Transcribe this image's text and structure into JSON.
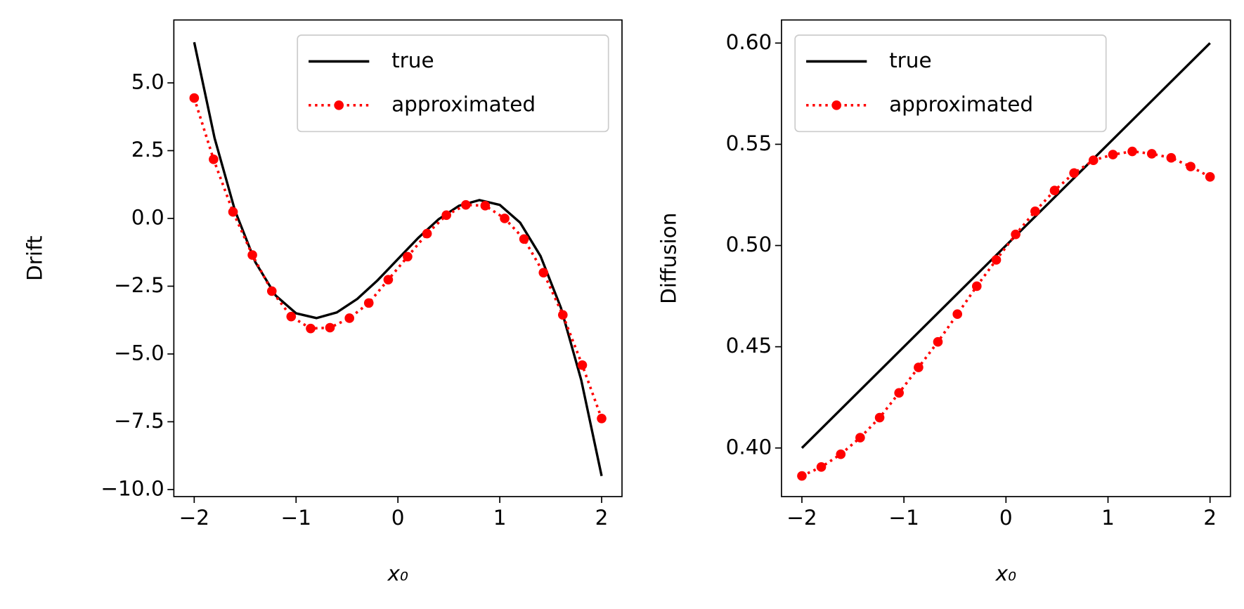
{
  "chart_data": [
    {
      "type": "line",
      "xlabel": "x₀",
      "ylabel": "Drift",
      "legend": "upper right",
      "xlim": [
        -2.2,
        2.2
      ],
      "ylim": [
        -10.26,
        7.32
      ],
      "xticks": [
        {
          "value": -2,
          "label": "−2"
        },
        {
          "value": -1,
          "label": "−1"
        },
        0,
        1,
        2
      ],
      "yticks": [
        {
          "value": 5,
          "label": "5.0"
        },
        {
          "value": 2.5,
          "label": "2.5"
        },
        {
          "value": 0,
          "label": "0.0"
        },
        {
          "value": -2.5,
          "label": "−2.5"
        },
        {
          "value": -5,
          "label": "−5.0"
        },
        {
          "value": -7.5,
          "label": "−7.5"
        },
        {
          "value": -10,
          "label": "−10.0"
        }
      ],
      "series": [
        {
          "name": "true",
          "color": "#000000",
          "style": "solid",
          "x": [
            -2,
            -1.8,
            -1.6,
            -1.4,
            -1.2,
            -1.0,
            -0.8,
            -0.6,
            -0.4,
            -0.2,
            0,
            0.2,
            0.4,
            0.6,
            0.8,
            1.0,
            1.2,
            1.4,
            1.6,
            1.8,
            2.0
          ],
          "values": [
            6.5,
            2.964,
            0.292,
            -1.612,
            -2.844,
            -3.5,
            -3.676,
            -3.468,
            -2.972,
            -2.284,
            -1.5,
            -0.716,
            -0.028,
            0.468,
            0.676,
            0.5,
            -0.156,
            -1.388,
            -3.292,
            -5.964,
            -9.5
          ]
        },
        {
          "name": "approximated",
          "color": "#ff0000",
          "style": "dotted",
          "x": [
            -2,
            -1.81,
            -1.619,
            -1.429,
            -1.238,
            -1.048,
            -0.857,
            -0.667,
            -0.476,
            -0.286,
            -0.095,
            0.095,
            0.286,
            0.476,
            0.667,
            0.857,
            1.048,
            1.238,
            1.429,
            1.619,
            1.81,
            2
          ],
          "values": [
            4.44,
            2.18,
            0.24,
            -1.35,
            -2.68,
            -3.62,
            -4.06,
            -4.03,
            -3.68,
            -3.12,
            -2.26,
            -1.41,
            -0.56,
            0.12,
            0.5,
            0.47,
            0,
            -0.76,
            -2.0,
            -3.56,
            -5.41,
            -7.38
          ]
        }
      ]
    },
    {
      "type": "line",
      "xlabel": "x₀",
      "ylabel": "Diffusion",
      "legend": "upper left",
      "xlim": [
        -2.2,
        2.2
      ],
      "ylim": [
        0.376,
        0.6114
      ],
      "xticks": [
        {
          "value": -2,
          "label": "−2"
        },
        {
          "value": -1,
          "label": "−1"
        },
        0,
        1,
        2
      ],
      "yticks": [
        {
          "value": 0.4,
          "label": "0.40"
        },
        {
          "value": 0.45,
          "label": "0.45"
        },
        {
          "value": 0.5,
          "label": "0.50"
        },
        {
          "value": 0.55,
          "label": "0.55"
        },
        {
          "value": 0.6,
          "label": "0.60"
        }
      ],
      "series": [
        {
          "name": "true",
          "color": "#000000",
          "style": "solid",
          "x": [
            -2,
            2
          ],
          "values": [
            0.4,
            0.6
          ]
        },
        {
          "name": "approximated",
          "color": "#ff0000",
          "style": "dotted",
          "x": [
            -2,
            -1.81,
            -1.619,
            -1.429,
            -1.238,
            -1.048,
            -0.857,
            -0.667,
            -0.476,
            -0.286,
            -0.095,
            0.095,
            0.286,
            0.476,
            0.667,
            0.857,
            1.048,
            1.238,
            1.429,
            1.619,
            1.81,
            2
          ],
          "values": [
            0.3862,
            0.3906,
            0.3969,
            0.4051,
            0.415,
            0.4272,
            0.4398,
            0.4524,
            0.4661,
            0.4799,
            0.4929,
            0.5055,
            0.5169,
            0.5272,
            0.5358,
            0.5421,
            0.5449,
            0.5465,
            0.5453,
            0.5433,
            0.539,
            0.5339
          ]
        }
      ]
    }
  ]
}
